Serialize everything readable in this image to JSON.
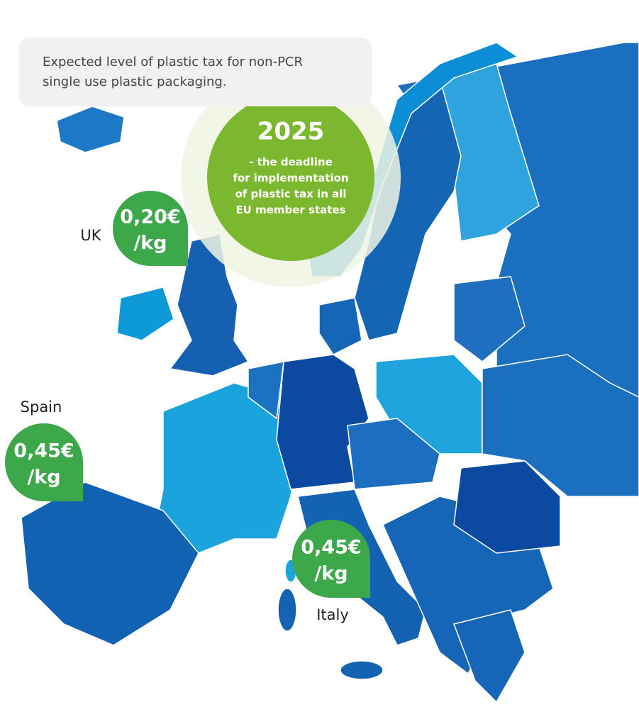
{
  "caption": {
    "lines": [
      "Expected level of plastic tax for non-PCR",
      "single use plastic packaging."
    ]
  },
  "deadline": {
    "year": "2025",
    "lines": [
      "- the deadline",
      "for implementation",
      "of plastic tax in all",
      "EU member states"
    ]
  },
  "markers": [
    {
      "country": "UK",
      "price": "0,20€",
      "unit": "/kg"
    },
    {
      "country": "Spain",
      "price": "0,45€",
      "unit": "/kg"
    },
    {
      "country": "Italy",
      "price": "0,45€",
      "unit": "/kg"
    }
  ]
}
